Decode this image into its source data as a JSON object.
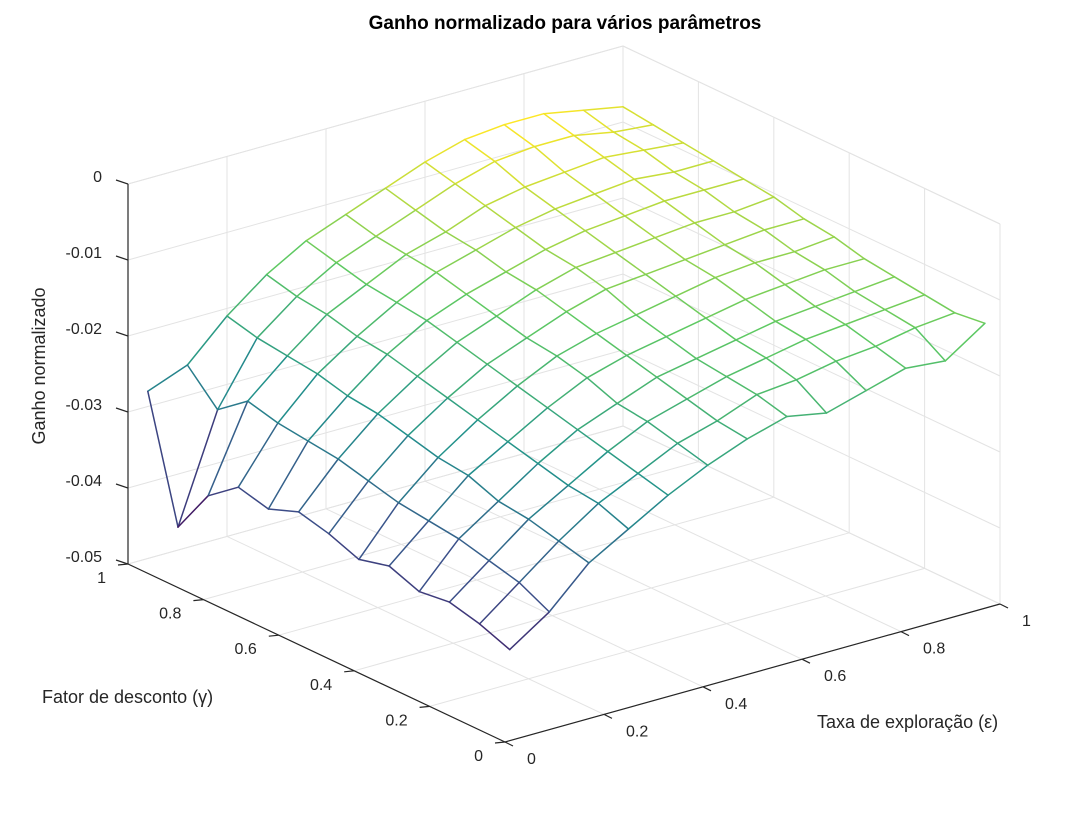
{
  "chart_data": {
    "type": "surface",
    "title": "Ganho normalizado para vários parâmetros",
    "xlabel": "Taxa de exploração (ε)",
    "ylabel": "Fator de desconto (γ)",
    "zlabel": "Ganho normalizado",
    "xlim": [
      0,
      1
    ],
    "ylim": [
      0,
      1
    ],
    "zlim": [
      -0.05,
      0
    ],
    "xticks": [
      0,
      0.2,
      0.4,
      0.6,
      0.8,
      1
    ],
    "xtick_labels": [
      "0",
      "0.2",
      "0.4",
      "0.6",
      "0.8",
      "1"
    ],
    "yticks": [
      0,
      0.2,
      0.4,
      0.6,
      0.8,
      1
    ],
    "ytick_labels": [
      "0",
      "0.2",
      "0.4",
      "0.6",
      "0.8",
      "1"
    ],
    "zticks": [
      -0.05,
      -0.04,
      -0.03,
      -0.02,
      -0.01,
      0
    ],
    "ztick_labels": [
      "-0.05",
      "-0.04",
      "-0.03",
      "-0.02",
      "-0.01",
      "0"
    ],
    "grid": true,
    "colormap": [
      "#440154",
      "#3b528b",
      "#21918c",
      "#5ec962",
      "#fde725"
    ],
    "x": [
      0.04,
      0.12,
      0.2,
      0.28,
      0.36,
      0.44,
      0.52,
      0.6,
      0.68,
      0.76,
      0.84,
      0.92,
      1.0
    ],
    "y": [
      0.04,
      0.12,
      0.2,
      0.28,
      0.36,
      0.44,
      0.52,
      0.6,
      0.68,
      0.76,
      0.84,
      0.92,
      1.0
    ],
    "z": [
      [
        -0.0395,
        -0.036,
        -0.031,
        -0.028,
        -0.025,
        -0.0225,
        -0.0205,
        -0.019,
        -0.02,
        -0.0185,
        -0.017,
        -0.0175,
        -0.014
      ],
      [
        -0.038,
        -0.034,
        -0.03,
        -0.0265,
        -0.024,
        -0.0215,
        -0.02,
        -0.018,
        -0.0175,
        -0.0165,
        -0.016,
        -0.015,
        -0.0145
      ],
      [
        -0.037,
        -0.033,
        -0.029,
        -0.026,
        -0.023,
        -0.0205,
        -0.019,
        -0.0175,
        -0.0165,
        -0.0155,
        -0.015,
        -0.0145,
        -0.014
      ],
      [
        -0.0375,
        -0.032,
        -0.0285,
        -0.025,
        -0.022,
        -0.02,
        -0.018,
        -0.017,
        -0.016,
        -0.015,
        -0.0145,
        -0.014,
        -0.0135
      ],
      [
        -0.036,
        -0.0315,
        -0.027,
        -0.024,
        -0.021,
        -0.0185,
        -0.017,
        -0.016,
        -0.015,
        -0.014,
        -0.0135,
        -0.013,
        -0.013
      ],
      [
        -0.037,
        -0.031,
        -0.0265,
        -0.023,
        -0.02,
        -0.0175,
        -0.016,
        -0.015,
        -0.014,
        -0.013,
        -0.0125,
        -0.0125,
        -0.012
      ],
      [
        -0.0355,
        -0.03,
        -0.0255,
        -0.022,
        -0.019,
        -0.017,
        -0.015,
        -0.0135,
        -0.013,
        -0.0125,
        -0.012,
        -0.0115,
        -0.0115
      ],
      [
        -0.0345,
        -0.029,
        -0.0245,
        -0.021,
        -0.018,
        -0.016,
        -0.014,
        -0.0125,
        -0.012,
        -0.0115,
        -0.011,
        -0.011,
        -0.0105
      ],
      [
        -0.036,
        -0.0285,
        -0.024,
        -0.02,
        -0.017,
        -0.015,
        -0.0135,
        -0.012,
        -0.011,
        -0.0105,
        -0.01,
        -0.01,
        -0.01
      ],
      [
        -0.035,
        -0.028,
        -0.023,
        -0.0195,
        -0.0165,
        -0.014,
        -0.0125,
        -0.011,
        -0.01,
        -0.0095,
        -0.009,
        -0.0095,
        -0.0095
      ],
      [
        -0.038,
        -0.027,
        -0.0225,
        -0.0185,
        -0.016,
        -0.0135,
        -0.012,
        -0.01,
        -0.009,
        -0.0085,
        -0.008,
        -0.0085,
        -0.009
      ],
      [
        -0.044,
        -0.03,
        -0.022,
        -0.018,
        -0.015,
        -0.013,
        -0.011,
        -0.009,
        -0.0075,
        -0.007,
        -0.007,
        -0.008,
        -0.0085
      ],
      [
        -0.028,
        -0.026,
        -0.021,
        -0.017,
        -0.014,
        -0.012,
        -0.01,
        -0.008,
        -0.0065,
        -0.006,
        -0.006,
        -0.007,
        -0.008
      ]
    ]
  }
}
